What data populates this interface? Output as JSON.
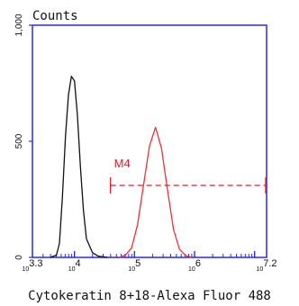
{
  "chart_data": {
    "type": "line",
    "title": "Counts",
    "xlabel": "Cytokeratin 8+18-Alexa Fluor 488",
    "xscale": "log",
    "xlim": [
      3.3,
      7.2
    ],
    "ylim": [
      0,
      1000
    ],
    "x_tick_labels": [
      {
        "base": "10",
        "exp": "3.3",
        "at": 3.3
      },
      {
        "base": "10",
        "exp": "4",
        "at": 4
      },
      {
        "base": "10",
        "exp": "5",
        "at": 5
      },
      {
        "base": "10",
        "exp": "6",
        "at": 6
      },
      {
        "base": "10",
        "exp": "7.2",
        "at": 7.2
      }
    ],
    "y_ticks": [
      0,
      500,
      1000
    ],
    "y_tick_labels": [
      "0",
      "500",
      "1,000"
    ],
    "grid": false,
    "colors": {
      "frame": "#2b2bd6",
      "control": "#111111",
      "sample": "#e8323c",
      "marker": "#d42030"
    },
    "series": [
      {
        "color": "#111111",
        "x": [
          3.6,
          3.7,
          3.75,
          3.8,
          3.85,
          3.9,
          3.95,
          4.0,
          4.05,
          4.1,
          4.15,
          4.2,
          4.3,
          4.4,
          4.55
        ],
        "y": [
          0,
          10,
          60,
          260,
          520,
          700,
          780,
          760,
          610,
          390,
          200,
          80,
          20,
          5,
          0
        ]
      },
      {
        "color": "#e8323c",
        "x": [
          4.75,
          4.85,
          4.95,
          5.05,
          5.15,
          5.25,
          5.35,
          5.45,
          5.55,
          5.65,
          5.75,
          5.85,
          5.95
        ],
        "y": [
          0,
          10,
          40,
          140,
          310,
          480,
          560,
          470,
          290,
          120,
          35,
          8,
          0
        ]
      }
    ],
    "annotations": [
      {
        "label": "M4",
        "x_start": 4.6,
        "x_end": 7.2,
        "y": 310
      }
    ]
  }
}
